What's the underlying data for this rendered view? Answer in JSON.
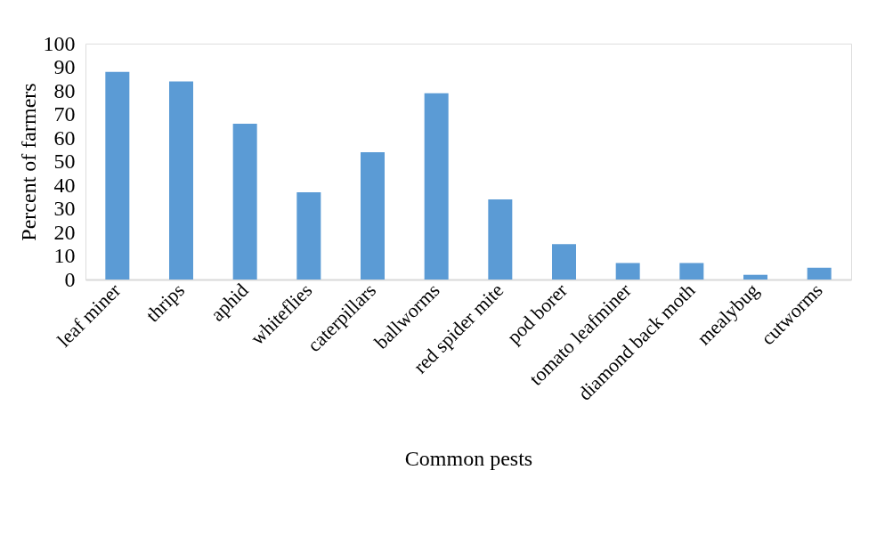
{
  "chart_data": {
    "type": "bar",
    "xlabel": "Common pests",
    "ylabel": "Percent of farmers",
    "categories": [
      "leaf miner",
      "thrips",
      "aphid",
      "whiteflies",
      "caterpillars",
      "ballworms",
      "red spider mite",
      "pod borer",
      "tomato leafminer",
      "diamond back moth",
      "mealybug",
      "cutworms"
    ],
    "values": [
      88,
      84,
      66,
      37,
      54,
      79,
      34,
      15,
      7,
      7,
      2,
      5
    ],
    "color": "#5b9bd5",
    "ylim": [
      0,
      100
    ],
    "yticks": [
      0,
      10,
      20,
      30,
      40,
      50,
      60,
      70,
      80,
      90,
      100
    ],
    "grid": false
  }
}
